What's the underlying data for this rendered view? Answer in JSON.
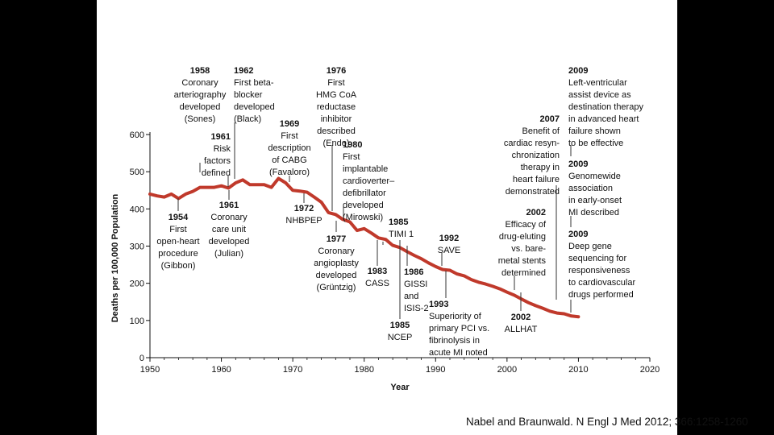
{
  "citation": "Nabel and Braunwald. N Engl J Med 2012; 366:1258-1260",
  "chart_data": {
    "type": "line",
    "xlabel": "Year",
    "ylabel": "Deaths per 100,000 Population",
    "xlim": [
      1950,
      2020
    ],
    "ylim": [
      0,
      600
    ],
    "xticks": [
      1950,
      1960,
      1970,
      1980,
      1990,
      2000,
      2010,
      2020
    ],
    "yticks": [
      0,
      100,
      200,
      300,
      400,
      500,
      600
    ],
    "grid": false,
    "line_color": "#c0392b",
    "series": [
      {
        "x": [
          1950,
          1951,
          1952,
          1953,
          1954,
          1955,
          1956,
          1957,
          1958,
          1959,
          1960,
          1961,
          1962,
          1963,
          1964,
          1965,
          1966,
          1967,
          1968,
          1969,
          1970,
          1971,
          1972,
          1973,
          1974,
          1975,
          1976,
          1977,
          1978,
          1979,
          1980,
          1981,
          1982,
          1983,
          1984,
          1985,
          1986,
          1987,
          1988,
          1989,
          1990,
          1991,
          1992,
          1993,
          1994,
          1995,
          1996,
          1997,
          1998,
          1999,
          2000,
          2001,
          2002,
          2003,
          2004,
          2005,
          2006,
          2007,
          2008,
          2009,
          2010
        ],
        "values": [
          440,
          435,
          432,
          440,
          428,
          440,
          447,
          458,
          458,
          458,
          462,
          456,
          470,
          478,
          465,
          465,
          465,
          458,
          482,
          470,
          450,
          448,
          445,
          432,
          418,
          390,
          385,
          372,
          365,
          342,
          347,
          335,
          322,
          318,
          302,
          296,
          285,
          275,
          266,
          255,
          245,
          237,
          235,
          225,
          220,
          210,
          203,
          198,
          192,
          185,
          176,
          168,
          158,
          148,
          140,
          133,
          125,
          120,
          118,
          112,
          110
        ]
      }
    ],
    "annotations": [
      {
        "year": "1958",
        "text": [
          "Coronary",
          "arteriography",
          "developed",
          "(Sones)"
        ],
        "x": 1958
      },
      {
        "year": "1961",
        "text": [
          "Risk",
          "factors",
          "defined"
        ],
        "x": 1961
      },
      {
        "year": "1962",
        "text": [
          "First beta-",
          "blocker",
          "developed",
          "(Black)"
        ],
        "x": 1962
      },
      {
        "year": "1969",
        "text": [
          "First",
          "description",
          "of CABG",
          "(Favaloro)"
        ],
        "x": 1969
      },
      {
        "year": "1976",
        "text": [
          "First",
          "HMG CoA",
          "reductase",
          "inhibitor",
          "described",
          "(Endo)"
        ],
        "x": 1976
      },
      {
        "year": "1980",
        "text": [
          "First",
          "implantable",
          "cardioverter–",
          "defibrillator",
          "developed",
          "(Mirowski)"
        ],
        "x": 1980
      },
      {
        "year": "1985",
        "text": [
          "TIMI 1"
        ],
        "x": 1985
      },
      {
        "year": "1992",
        "text": [
          "SAVE"
        ],
        "x": 1992
      },
      {
        "year": "2002",
        "text": [
          "Efficacy of",
          "drug-eluting",
          "vs. bare-",
          "metal stents",
          "determined"
        ],
        "x": 2002
      },
      {
        "year": "2007",
        "text": [
          "Benefit of",
          "cardiac resyn-",
          "chronization",
          "therapy in",
          "heart failure",
          "demonstrated"
        ],
        "x": 2007
      },
      {
        "year": "2009",
        "text": [
          "Left-ventricular",
          "assist device as",
          "destination therapy",
          "in advanced heart",
          "failure shown",
          "to be effective"
        ],
        "x": 2009
      },
      {
        "year": "2009",
        "text": [
          "Genomewide",
          "association",
          "in early-onset",
          "MI described"
        ],
        "x": 2009
      },
      {
        "year": "2009",
        "text": [
          "Deep gene",
          "sequencing for",
          "responsiveness",
          "to cardiovascular",
          "drugs performed"
        ],
        "x": 2009
      },
      {
        "year": "1954",
        "text": [
          "First",
          "open-heart",
          "procedure",
          "(Gibbon)"
        ],
        "x": 1954
      },
      {
        "year": "1961",
        "text": [
          "Coronary",
          "care unit",
          "developed",
          "(Julian)"
        ],
        "x": 1961
      },
      {
        "year": "1972",
        "text": [
          "NHBPEP"
        ],
        "x": 1972
      },
      {
        "year": "1977",
        "text": [
          "Coronary",
          "angioplasty",
          "developed",
          "(Grüntzig)"
        ],
        "x": 1977
      },
      {
        "year": "1983",
        "text": [
          "CASS"
        ],
        "x": 1983
      },
      {
        "year": "1986",
        "text": [
          "GISSI",
          "and",
          "ISIS-2"
        ],
        "x": 1986
      },
      {
        "year": "1985",
        "text": [
          "NCEP"
        ],
        "x": 1985
      },
      {
        "year": "1993",
        "text": [
          "Superiority of",
          "primary PCI vs.",
          "fibrinolysis in",
          "acute MI noted"
        ],
        "x": 1993
      },
      {
        "year": "2002",
        "text": [
          "ALLHAT"
        ],
        "x": 2002
      }
    ]
  }
}
